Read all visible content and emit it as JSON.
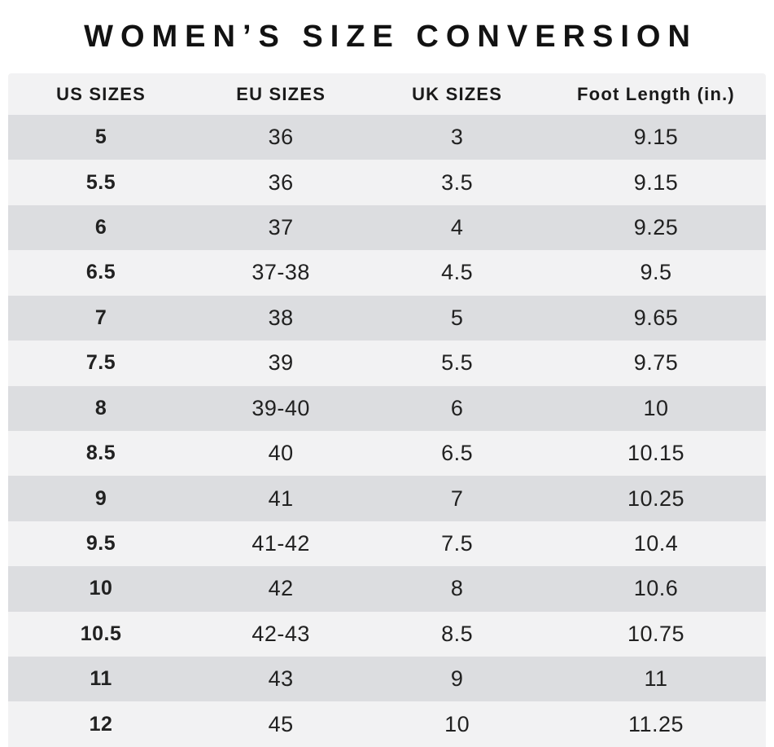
{
  "title": "WOMEN’S SIZE CONVERSION",
  "table": {
    "columns": [
      "US SIZES",
      "EU SIZES",
      "UK SIZES",
      "Foot Length (in.)"
    ],
    "rows": [
      [
        "5",
        "36",
        "3",
        "9.15"
      ],
      [
        "5.5",
        "36",
        "3.5",
        "9.15"
      ],
      [
        "6",
        "37",
        "4",
        "9.25"
      ],
      [
        "6.5",
        "37-38",
        "4.5",
        "9.5"
      ],
      [
        "7",
        "38",
        "5",
        "9.65"
      ],
      [
        "7.5",
        "39",
        "5.5",
        "9.75"
      ],
      [
        "8",
        "39-40",
        "6",
        "10"
      ],
      [
        "8.5",
        "40",
        "6.5",
        "10.15"
      ],
      [
        "9",
        "41",
        "7",
        "10.25"
      ],
      [
        "9.5",
        "41-42",
        "7.5",
        "10.4"
      ],
      [
        "10",
        "42",
        "8",
        "10.6"
      ],
      [
        "10.5",
        "42-43",
        "8.5",
        "10.75"
      ],
      [
        "11",
        "43",
        "9",
        "11"
      ],
      [
        "12",
        "45",
        "10",
        "11.25"
      ]
    ]
  },
  "colors": {
    "background": "#ffffff",
    "row_dark": "#dcdde0",
    "row_light": "#f2f2f3",
    "text": "#121212"
  }
}
